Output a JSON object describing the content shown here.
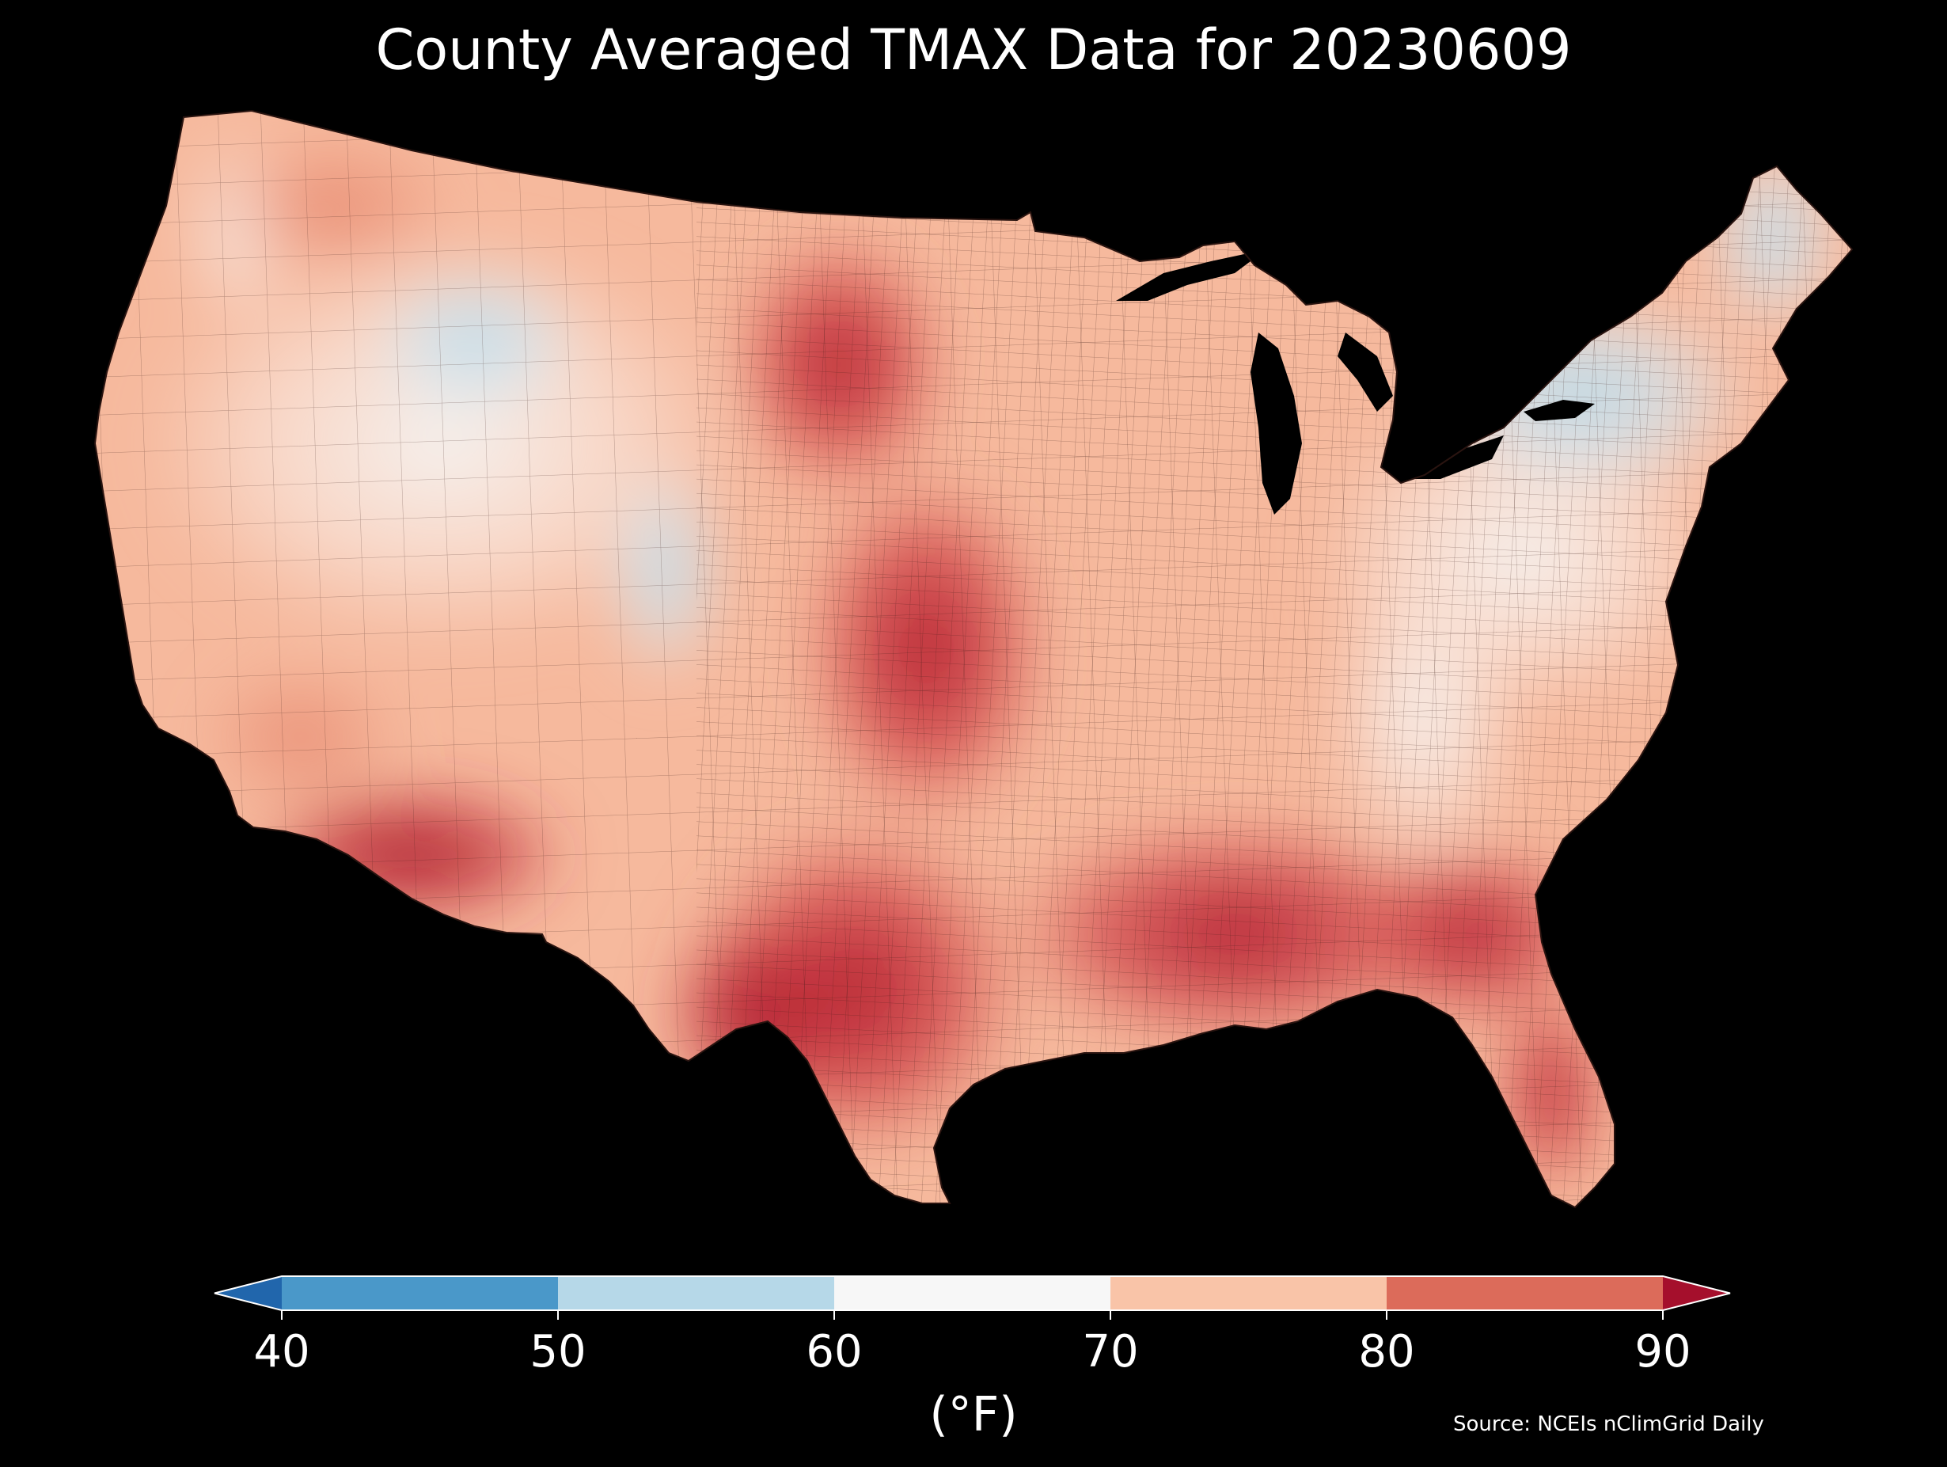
{
  "title": "County Averaged TMAX Data for 20230609",
  "source": "Source: NCEIs nClimGrid Daily",
  "colorbar": {
    "unit_label": "(°F)",
    "ticks": [
      "40",
      "50",
      "60",
      "70",
      "80",
      "90"
    ],
    "bins": [
      {
        "from": 40,
        "to": 50,
        "color": "#4a98c9"
      },
      {
        "from": 50,
        "to": 60,
        "color": "#b6d8e8"
      },
      {
        "from": 60,
        "to": 70,
        "color": "#f7f7f7"
      },
      {
        "from": 70,
        "to": 80,
        "color": "#f9c4a8"
      },
      {
        "from": 80,
        "to": 90,
        "color": "#dc6b5a"
      }
    ],
    "under_color": "#2166ac",
    "over_color": "#a50f2c",
    "extend": "both"
  },
  "map": {
    "region": "Contiguous United States, county level",
    "variable": "TMAX",
    "units": "°F",
    "colors": {
      "base_land": "#f6b99d",
      "hottest": "#a7172d",
      "hot": "#cf3e43",
      "mild": "#f7f2ee",
      "cool": "#b6d8e8",
      "background": "#000000"
    }
  }
}
